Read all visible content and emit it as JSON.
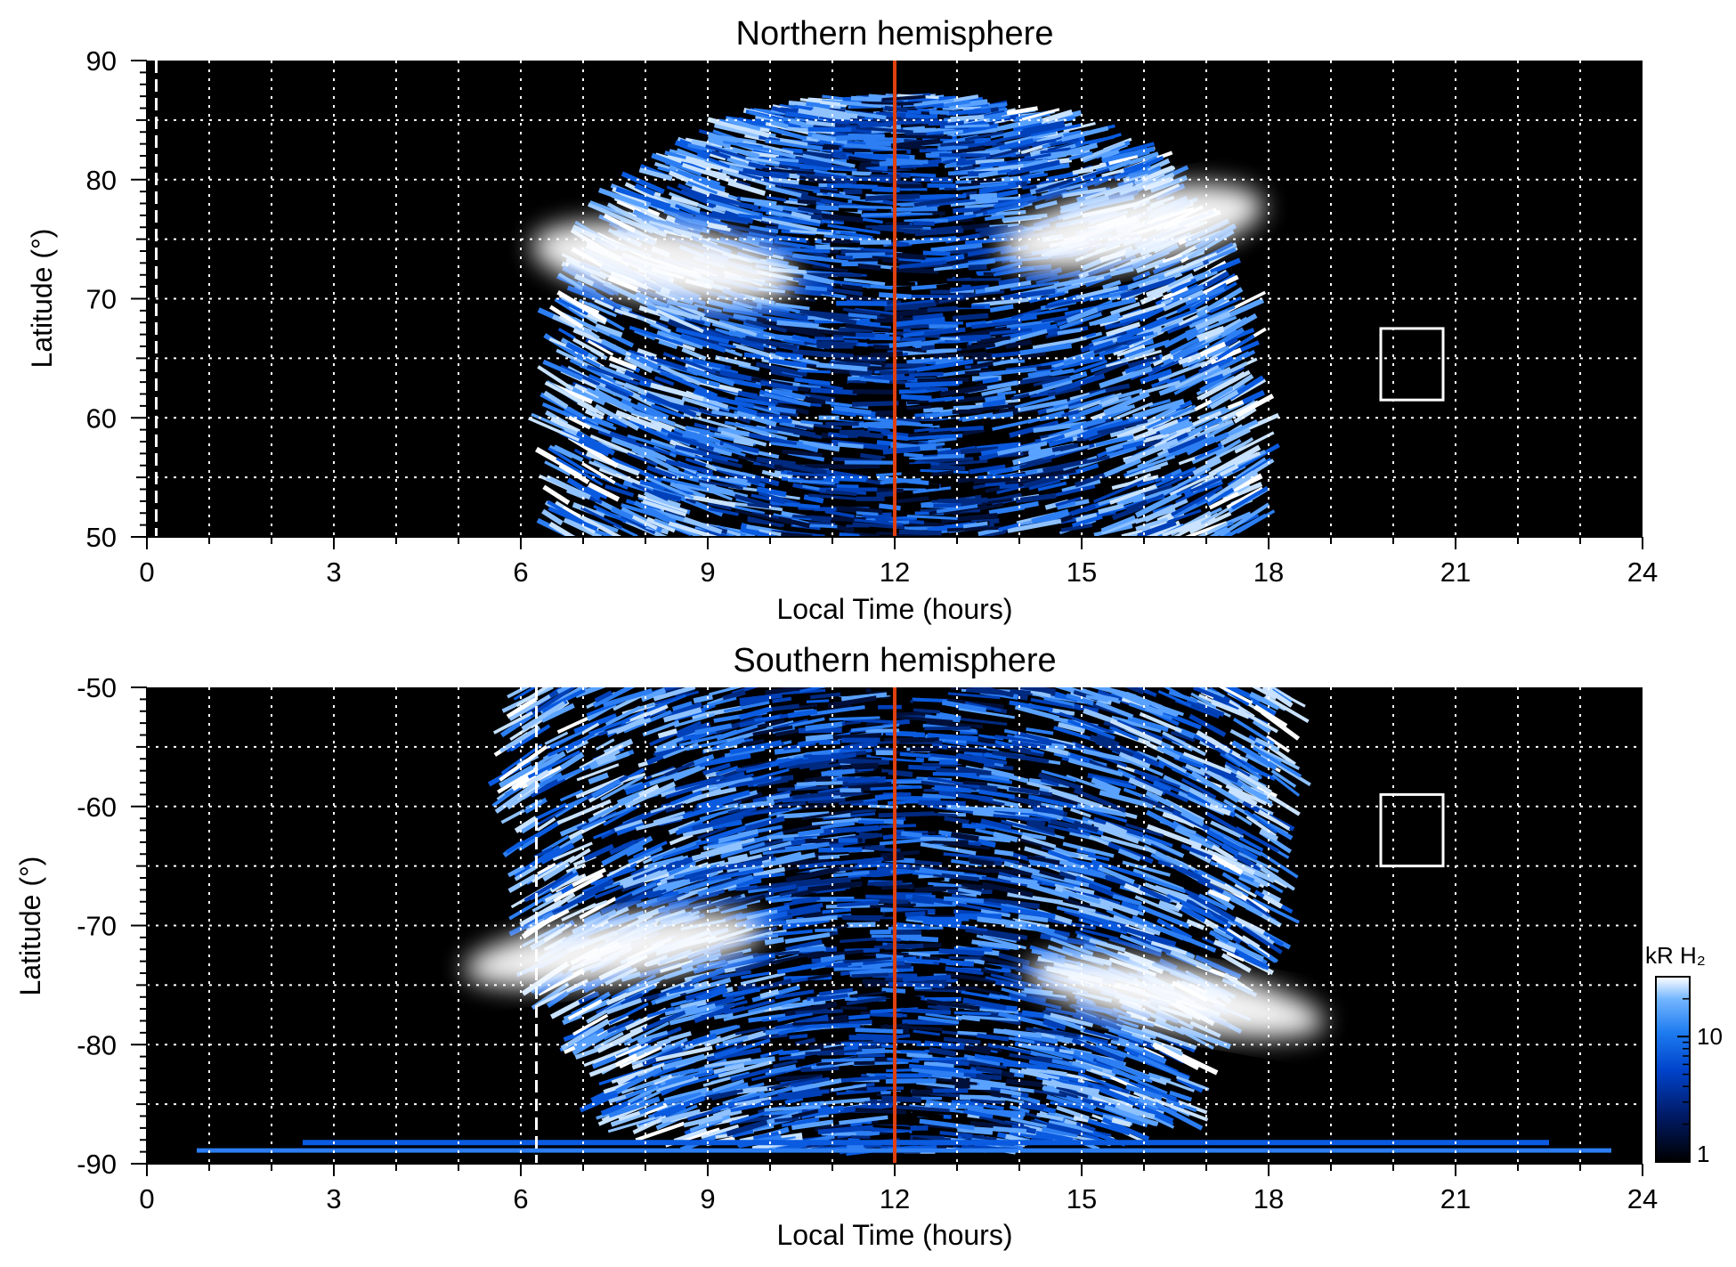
{
  "chart_data": [
    {
      "type": "heatmap",
      "title": "Northern hemisphere",
      "xlabel": "Local Time (hours)",
      "ylabel": "Latitude (°)",
      "xlim": [
        0,
        24
      ],
      "ylim": [
        50,
        90
      ],
      "xticks": [
        "0",
        "3",
        "6",
        "9",
        "12",
        "15",
        "18",
        "21",
        "24"
      ],
      "yticks": [
        "50",
        "60",
        "70",
        "80",
        "90"
      ],
      "grid": true,
      "emission_region": {
        "lt_start": 6.5,
        "lt_end": 17.8,
        "top_lat": 87
      },
      "noon_line_lt": 12,
      "dashed_marker_lt": 0.15,
      "box": {
        "lt": [
          19.8,
          20.8
        ],
        "lat": [
          61.5,
          67.5
        ]
      },
      "bright_bands": [
        {
          "lt_center": 8.3,
          "lat_center": 73,
          "description": "dawn auroral band"
        },
        {
          "lt_center": 15.8,
          "lat_center": 76
        }
      ]
    },
    {
      "type": "heatmap",
      "title": "Southern hemisphere",
      "xlabel": "Local Time (hours)",
      "ylabel": "Latitude (°)",
      "xlim": [
        0,
        24
      ],
      "ylim": [
        -90,
        -50
      ],
      "xticks": [
        "0",
        "3",
        "6",
        "9",
        "12",
        "15",
        "18",
        "21",
        "24"
      ],
      "yticks": [
        "-50",
        "-60",
        "-70",
        "-80",
        "-90"
      ],
      "grid": true,
      "emission_region": {
        "lt_start": 5.8,
        "lt_end": 18.3,
        "bottom_lat": -89
      },
      "noon_line_lt": 12,
      "dashed_marker_lt": 6.25,
      "box": {
        "lt": [
          19.8,
          20.8
        ],
        "lat": [
          -65,
          -59
        ]
      },
      "bright_bands": [
        {
          "lt_center": 7.5,
          "lat_center": -72
        },
        {
          "lt_center": 16.5,
          "lat_center": -76
        }
      ]
    }
  ],
  "colorbar": {
    "title": "kR H₂",
    "ticks": [
      "10",
      "1"
    ],
    "scale": "log",
    "range": [
      1,
      30
    ],
    "colors": [
      "#000000",
      "#001a66",
      "#0044cc",
      "#1e7cf0",
      "#74b6ff",
      "#ffffff"
    ]
  },
  "colors": {
    "noon_line": "#e04010",
    "box": "#ffffff",
    "grid": "#ffffff",
    "background": "#000000"
  }
}
